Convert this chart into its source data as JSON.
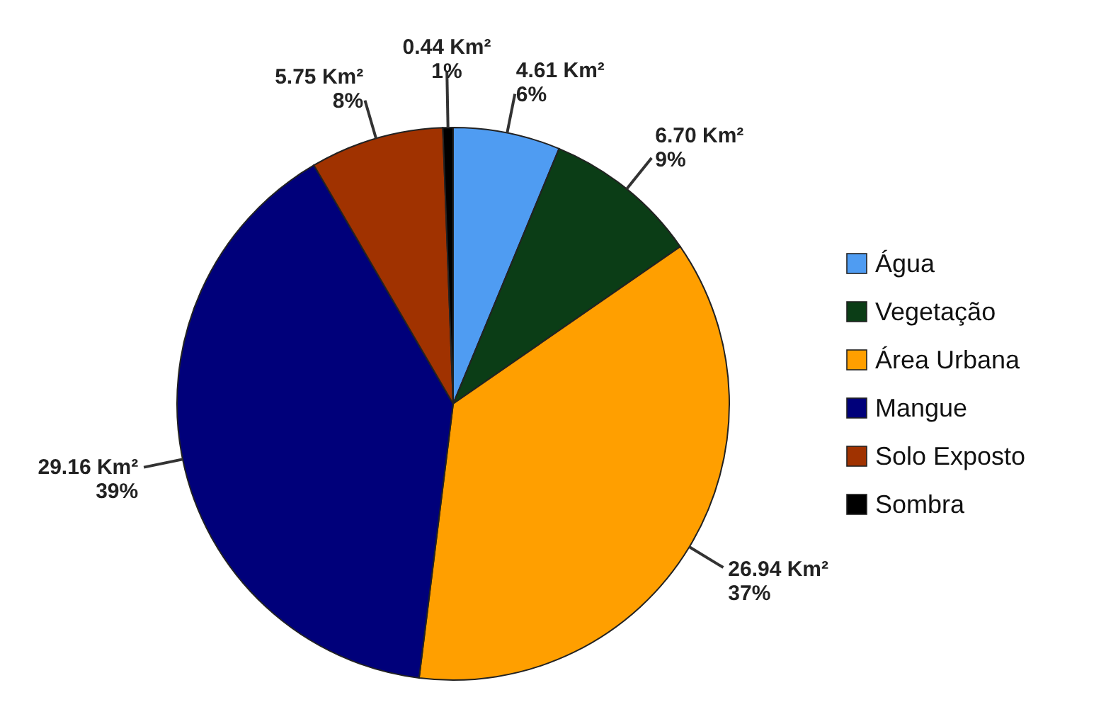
{
  "chart_data": {
    "type": "pie",
    "categories": [
      "Água",
      "Vegetação",
      "Área Urbana",
      "Mangue",
      "Solo Exposto",
      "Sombra"
    ],
    "values": [
      4.61,
      6.7,
      26.94,
      29.16,
      5.75,
      0.44
    ],
    "colors": [
      "#4f9cf2",
      "#0b3d16",
      "#ff9f00",
      "#00007a",
      "#a03200",
      "#000000"
    ],
    "value_labels": [
      "4.61 Km²\n6%",
      "6.70 Km²\n9%",
      "26.94 Km²\n37%",
      "29.16 Km²\n39%",
      "5.75 Km²\n8%",
      "0.44 Km²\n1%"
    ],
    "legend": "right"
  }
}
